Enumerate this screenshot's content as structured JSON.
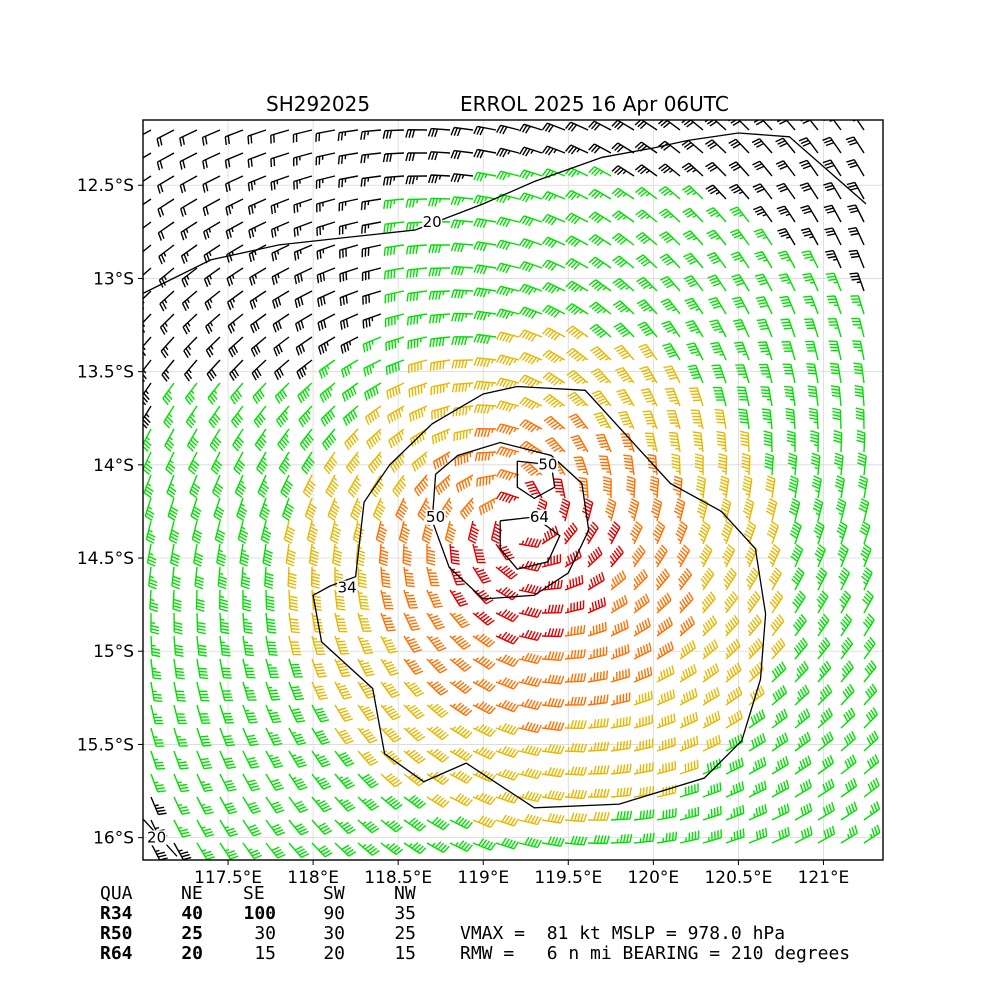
{
  "title": {
    "storm_id": "SH292025",
    "storm_label": "ERROL 2025 16 Apr 06UTC"
  },
  "map": {
    "lon_range": [
      117.0,
      121.35
    ],
    "lat_range": [
      -16.12,
      -12.15
    ],
    "lon_ticks": [
      {
        "value": 117.5,
        "label": "117.5°E"
      },
      {
        "value": 118.0,
        "label": "118°E"
      },
      {
        "value": 118.5,
        "label": "118.5°E"
      },
      {
        "value": 119.0,
        "label": "119°E"
      },
      {
        "value": 119.5,
        "label": "119.5°E"
      },
      {
        "value": 120.0,
        "label": "120°E"
      },
      {
        "value": 120.5,
        "label": "120.5°E"
      },
      {
        "value": 121.0,
        "label": "121°E"
      }
    ],
    "lat_ticks": [
      {
        "value": -12.5,
        "label": "12.5°S"
      },
      {
        "value": -13.0,
        "label": "13°S"
      },
      {
        "value": -13.5,
        "label": "13.5°S"
      },
      {
        "value": -14.0,
        "label": "14°S"
      },
      {
        "value": -14.5,
        "label": "14.5°S"
      },
      {
        "value": -15.0,
        "label": "15°S"
      },
      {
        "value": -15.5,
        "label": "15.5°S"
      },
      {
        "value": -16.0,
        "label": "16°S"
      }
    ],
    "grid": true,
    "storm_center": {
      "lon": 119.2,
      "lat": -14.3
    },
    "wind_colors": {
      "lt34": "#000000",
      "ge34": "#00e000",
      "ge50": "#e6b800",
      "ge64": "#ff7000",
      "ge81": "#e00000"
    },
    "contour_color": "#000000",
    "contours": [
      {
        "label": "20",
        "label_at": [
          118.7,
          -12.72
        ],
        "points": [
          [
            117.0,
            -13.08
          ],
          [
            117.4,
            -12.9
          ],
          [
            117.8,
            -12.82
          ],
          [
            118.2,
            -12.78
          ],
          [
            118.6,
            -12.74
          ],
          [
            119.0,
            -12.6
          ],
          [
            119.3,
            -12.48
          ],
          [
            119.7,
            -12.35
          ],
          [
            120.0,
            -12.3
          ],
          [
            120.2,
            -12.26
          ],
          [
            120.5,
            -12.22
          ],
          [
            120.8,
            -12.24
          ],
          [
            121.0,
            -12.4
          ],
          [
            121.25,
            -12.6
          ]
        ]
      },
      {
        "label": "20",
        "label_at": [
          117.08,
          -16.02
        ],
        "points": [
          [
            117.0,
            -15.9
          ],
          [
            117.1,
            -16.0
          ],
          [
            117.2,
            -16.1
          ]
        ]
      },
      {
        "label": "34",
        "label_at": [
          118.2,
          -14.68
        ],
        "points": [
          [
            119.2,
            -13.58
          ],
          [
            119.6,
            -13.6
          ],
          [
            119.9,
            -13.9
          ],
          [
            120.1,
            -14.1
          ],
          [
            120.4,
            -14.25
          ],
          [
            120.6,
            -14.45
          ],
          [
            120.66,
            -14.8
          ],
          [
            120.63,
            -15.15
          ],
          [
            120.52,
            -15.48
          ],
          [
            120.3,
            -15.68
          ],
          [
            119.8,
            -15.82
          ],
          [
            119.3,
            -15.84
          ],
          [
            119.1,
            -15.72
          ],
          [
            118.9,
            -15.6
          ],
          [
            118.65,
            -15.7
          ],
          [
            118.42,
            -15.55
          ],
          [
            118.35,
            -15.2
          ],
          [
            118.05,
            -14.95
          ],
          [
            118.0,
            -14.7
          ],
          [
            118.1,
            -14.65
          ],
          [
            118.25,
            -14.6
          ],
          [
            118.3,
            -14.2
          ],
          [
            118.45,
            -14.0
          ],
          [
            118.7,
            -13.78
          ],
          [
            119.0,
            -13.62
          ],
          [
            119.2,
            -13.58
          ]
        ]
      },
      {
        "label": "50",
        "label_at": [
          118.72,
          -14.3
        ],
        "points": [
          [
            118.72,
            -14.05
          ],
          [
            118.85,
            -13.95
          ],
          [
            119.1,
            -13.88
          ],
          [
            119.4,
            -13.95
          ],
          [
            119.58,
            -14.1
          ],
          [
            119.62,
            -14.35
          ],
          [
            119.5,
            -14.58
          ],
          [
            119.3,
            -14.7
          ],
          [
            119.0,
            -14.72
          ],
          [
            118.8,
            -14.55
          ],
          [
            118.7,
            -14.3
          ],
          [
            118.72,
            -14.05
          ]
        ]
      },
      {
        "label": "64",
        "label_at": [
          119.33,
          -14.3
        ],
        "points": [
          [
            119.1,
            -14.3
          ],
          [
            119.3,
            -14.28
          ],
          [
            119.45,
            -14.38
          ],
          [
            119.38,
            -14.52
          ],
          [
            119.2,
            -14.56
          ],
          [
            119.1,
            -14.45
          ],
          [
            119.1,
            -14.3
          ]
        ]
      },
      {
        "label": "50",
        "label_at": [
          119.38,
          -14.02
        ],
        "points": [
          [
            119.2,
            -13.98
          ],
          [
            119.4,
            -14.0
          ],
          [
            119.42,
            -14.12
          ],
          [
            119.3,
            -14.18
          ],
          [
            119.2,
            -14.12
          ],
          [
            119.2,
            -13.98
          ]
        ]
      }
    ]
  },
  "wind_radii": {
    "headers": [
      "QUA",
      "NE",
      "SE",
      "SW",
      "NW"
    ],
    "rows": [
      {
        "label": "R34",
        "values": [
          "40",
          "100",
          "90",
          "35"
        ]
      },
      {
        "label": "R50",
        "values": [
          "25",
          "30",
          "30",
          "25"
        ]
      },
      {
        "label": "R64",
        "values": [
          "20",
          "15",
          "20",
          "15"
        ]
      }
    ]
  },
  "summary": {
    "line1": "VMAX =  81 kt MSLP = 978.0 hPa",
    "line2": "RMW =   6 n mi BEARING = 210 degrees"
  }
}
